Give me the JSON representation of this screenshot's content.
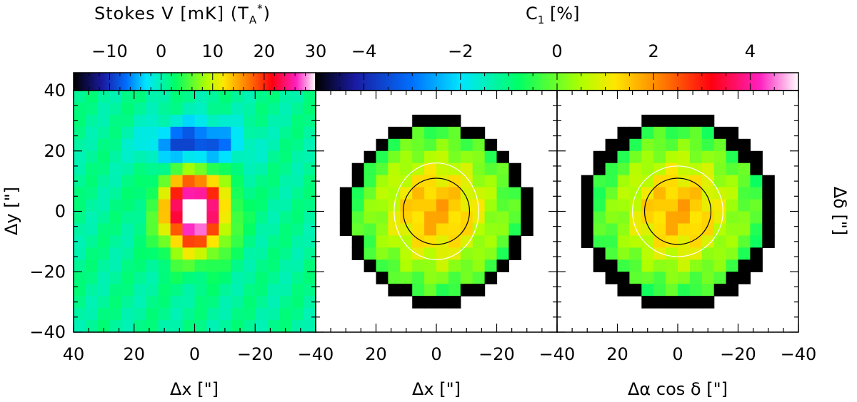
{
  "chart_data": [
    {
      "type": "heatmap",
      "panel": "left",
      "colorbar": {
        "title": "Stokes V [mK] (T_A*)",
        "title_main": "Stokes V [mK] (T",
        "title_sub": "A",
        "title_sup": "*",
        "title_tail": ")",
        "range": [
          -17,
          30
        ],
        "ticks": [
          -10,
          0,
          10,
          20,
          30
        ],
        "tick_labels": [
          "−10",
          "0",
          "10",
          "20",
          "30"
        ]
      },
      "xlabel": "Δx [\"]",
      "ylabel": "Δy [\"]",
      "xlim": [
        40,
        -40
      ],
      "ylim": [
        -40,
        40
      ],
      "xticks": [
        40,
        20,
        0,
        -20,
        -40
      ],
      "xtick_labels": [
        "40",
        "20",
        "0",
        "−20",
        "−40"
      ],
      "yticks": [
        40,
        20,
        0,
        -20,
        -40
      ],
      "ytick_labels": [
        "40",
        "20",
        "0",
        "−20",
        "−40"
      ],
      "grid": {
        "pixel_size": 4,
        "x_start": 40,
        "y_start": 40,
        "columns": 20,
        "rows": 20
      },
      "map_model": {
        "blob_negative": {
          "center": [
            0,
            22
          ],
          "sigma": [
            10,
            5
          ],
          "amplitude": -12
        },
        "blob_positive": {
          "center": [
            0,
            0
          ],
          "sigma": [
            7,
            9
          ],
          "amplitude": 33
        },
        "background": 1
      }
    },
    {
      "type": "heatmap",
      "panel": "middle",
      "colorbar": {
        "title": "C1 [%]",
        "title_main": "C",
        "title_sub": "1",
        "title_tail": " [%]",
        "range": [
          -5,
          5
        ],
        "ticks": [
          -4,
          -2,
          0,
          2,
          4
        ],
        "tick_labels": [
          "−4",
          "−2",
          "0",
          "2",
          "4"
        ]
      },
      "xlabel": "Δx [\"]",
      "xlim": [
        40,
        -40
      ],
      "ylim": [
        -40,
        40
      ],
      "xticks": [
        20,
        0,
        -20,
        -40
      ],
      "xtick_labels": [
        "20",
        "0",
        "−20",
        "−40"
      ],
      "grid": {
        "pixel_size": 4,
        "columns": 20,
        "rows": 20
      },
      "footprint_radius": 29,
      "map_model": {
        "center": [
          0,
          0
        ],
        "peak": 2.9,
        "sigma": 17
      },
      "beam_circle": {
        "center": [
          0,
          0
        ],
        "radius": 11
      },
      "contour": {
        "level": "white",
        "radius_x": 14,
        "radius_y": 16
      }
    },
    {
      "type": "heatmap",
      "panel": "right",
      "xlabel": "Δα cos δ [\"]",
      "ylabel": "Δδ [\"]",
      "xlim": [
        40,
        -40
      ],
      "ylim": [
        -40,
        40
      ],
      "xticks": [
        20,
        0,
        -20,
        -40
      ],
      "xtick_labels": [
        "20",
        "0",
        "−20",
        "−40"
      ],
      "grid": {
        "pixel_size": 4,
        "columns": 20,
        "rows": 20
      },
      "footprint_radius": 30,
      "map_model": {
        "center": [
          0,
          0
        ],
        "peak": 2.9,
        "sigma": 17
      },
      "beam_circle": {
        "center": [
          0,
          0
        ],
        "radius": 11
      },
      "contour": {
        "level": "white",
        "radius_x": 15,
        "radius_y": 15
      }
    }
  ]
}
